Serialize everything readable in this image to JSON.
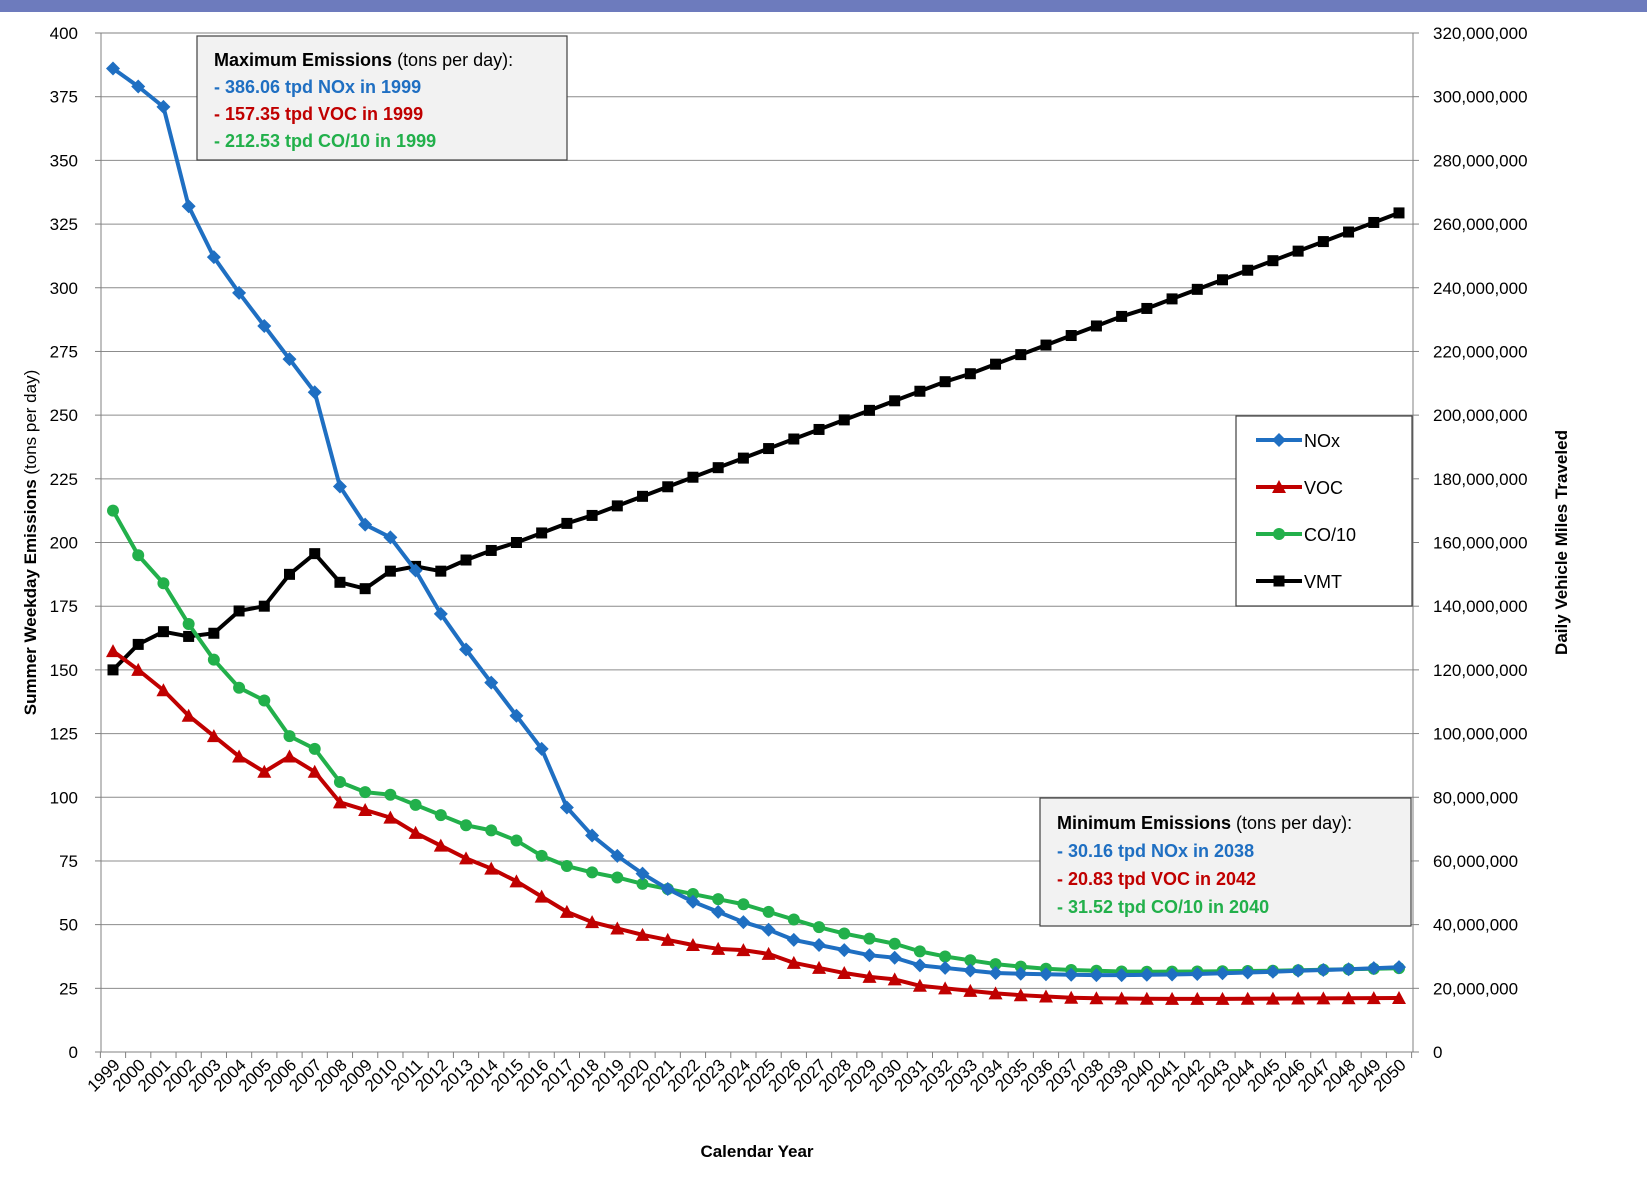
{
  "chart_data": {
    "type": "line",
    "xlabel": "Calendar Year",
    "ylabel_bold": "Summer Weekday Emissions",
    "ylabel_normal": " (tons per day)",
    "y2label": "Daily Vehicle Miles Traveled",
    "ylim": [
      0,
      400
    ],
    "y2lim": [
      0,
      320000000
    ],
    "yticks": [
      "0",
      "25",
      "50",
      "75",
      "100",
      "125",
      "150",
      "175",
      "200",
      "225",
      "250",
      "275",
      "300",
      "325",
      "350",
      "375",
      "400"
    ],
    "y2ticks": [
      "0",
      "20,000,000",
      "40,000,000",
      "60,000,000",
      "80,000,000",
      "100,000,000",
      "120,000,000",
      "140,000,000",
      "160,000,000",
      "180,000,000",
      "200,000,000",
      "220,000,000",
      "240,000,000",
      "260,000,000",
      "280,000,000",
      "300,000,000",
      "320,000,000"
    ],
    "x": [
      "1999",
      "2000",
      "2001",
      "2002",
      "2003",
      "2004",
      "2005",
      "2006",
      "2007",
      "2008",
      "2009",
      "2010",
      "2011",
      "2012",
      "2013",
      "2014",
      "2015",
      "2016",
      "2017",
      "2018",
      "2019",
      "2020",
      "2021",
      "2022",
      "2023",
      "2024",
      "2025",
      "2026",
      "2027",
      "2028",
      "2029",
      "2030",
      "2031",
      "2032",
      "2033",
      "2034",
      "2035",
      "2036",
      "2037",
      "2038",
      "2039",
      "2040",
      "2041",
      "2042",
      "2043",
      "2044",
      "2045",
      "2046",
      "2047",
      "2048",
      "2049",
      "2050"
    ],
    "grid": true,
    "legend_position": "right",
    "series": [
      {
        "name": "NOx",
        "axis": "left",
        "color": "#1f6fc2",
        "marker": "diamond",
        "values": [
          386.06,
          379,
          371,
          332,
          312,
          298,
          285,
          272,
          259,
          222,
          207,
          202,
          189,
          172,
          158,
          145,
          132,
          119,
          96,
          85,
          77,
          70,
          64,
          59,
          55,
          51,
          48,
          44,
          42,
          40,
          38,
          37,
          34,
          33,
          32,
          31,
          30.7,
          30.5,
          30.3,
          30.16,
          30.2,
          30.3,
          30.4,
          30.6,
          30.9,
          31.2,
          31.5,
          31.9,
          32.2,
          32.5,
          32.9,
          33.3
        ]
      },
      {
        "name": "VOC",
        "axis": "left",
        "color": "#c00000",
        "marker": "triangle",
        "values": [
          157.35,
          150,
          142,
          132,
          124,
          116,
          110,
          116,
          110,
          98,
          95,
          92,
          86,
          81,
          76,
          72,
          67,
          61,
          55,
          51,
          48.5,
          46,
          44,
          42,
          40.5,
          40,
          38.5,
          35,
          33,
          31,
          29.5,
          28.5,
          26,
          25,
          24,
          23,
          22.3,
          21.8,
          21.3,
          21.1,
          21.0,
          20.9,
          20.85,
          20.83,
          20.85,
          20.9,
          20.95,
          21.0,
          21.05,
          21.1,
          21.15,
          21.2
        ]
      },
      {
        "name": "CO/10",
        "axis": "left",
        "color": "#22b04b",
        "marker": "circle",
        "values": [
          212.53,
          195,
          184,
          168,
          154,
          143,
          138,
          124,
          119,
          106,
          102,
          101,
          97,
          93,
          89,
          87,
          83,
          77,
          73,
          70.5,
          68.5,
          66,
          64,
          62,
          60,
          58,
          55,
          52,
          49,
          46.5,
          44.5,
          42.5,
          39.5,
          37.5,
          36,
          34.5,
          33.5,
          32.7,
          32.2,
          31.9,
          31.6,
          31.52,
          31.55,
          31.6,
          31.7,
          31.8,
          31.9,
          32.1,
          32.3,
          32.5,
          32.7,
          32.9
        ]
      },
      {
        "name": "VMT",
        "axis": "right",
        "color": "#000000",
        "marker": "square",
        "values": [
          120000000,
          128000000,
          132000000,
          130500000,
          131500000,
          138500000,
          140000000,
          150000000,
          156500000,
          147500000,
          145500000,
          151000000,
          152500000,
          151000000,
          154500000,
          157500000,
          160000000,
          163000000,
          166000000,
          168500000,
          171500000,
          174500000,
          177500000,
          180500000,
          183500000,
          186500000,
          189500000,
          192500000,
          195500000,
          198500000,
          201500000,
          204500000,
          207500000,
          210500000,
          213000000,
          216000000,
          219000000,
          222000000,
          225000000,
          228000000,
          231000000,
          233500000,
          236500000,
          239500000,
          242500000,
          245500000,
          248500000,
          251500000,
          254500000,
          257500000,
          260500000,
          263500000
        ]
      }
    ]
  },
  "max_box": {
    "title_bold": "Maximum Emissions",
    "title_normal": " (tons per day):",
    "lines": [
      {
        "text": "- 386.06 tpd NOx in 1999",
        "color": "#1f6fc2"
      },
      {
        "text": "- 157.35 tpd VOC in 1999",
        "color": "#c00000"
      },
      {
        "text": "- 212.53 tpd CO/10 in 1999",
        "color": "#22b04b"
      }
    ]
  },
  "min_box": {
    "title_bold": "Minimum Emissions",
    "title_normal": " (tons per day):",
    "lines": [
      {
        "text": "- 30.16 tpd NOx in 2038",
        "color": "#1f6fc2"
      },
      {
        "text": "- 20.83 tpd VOC in 2042",
        "color": "#c00000"
      },
      {
        "text": "- 31.52 tpd CO/10 in 2040",
        "color": "#22b04b"
      }
    ]
  }
}
